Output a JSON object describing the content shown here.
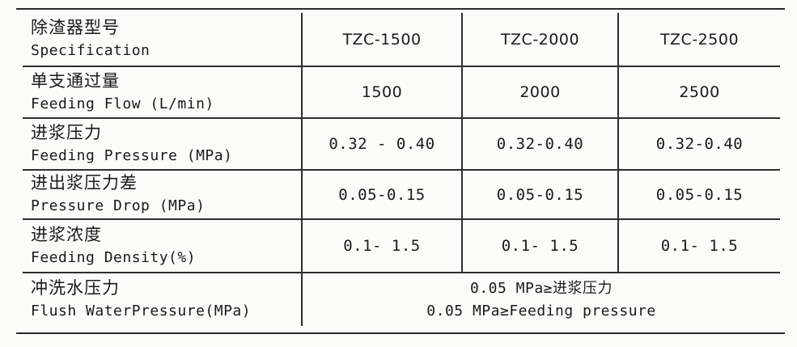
{
  "table": {
    "rows": [
      {
        "label_cn": "除渣器型号",
        "label_en": "Specification",
        "values": [
          "TZC-1500",
          "TZC-2000",
          "TZC-2500"
        ]
      },
      {
        "label_cn": "单支通过量",
        "label_en": "Feeding Flow (L/min)",
        "values": [
          "1500",
          "2000",
          "2500"
        ]
      },
      {
        "label_cn": "进浆压力",
        "label_en": "Feeding Pressure (MPa)",
        "values": [
          "0.32 - 0.40",
          "0.32-0.40",
          "0.32-0.40"
        ]
      },
      {
        "label_cn": "进出浆压力差",
        "label_en": "Pressure Drop (MPa)",
        "values": [
          "0.05-0.15",
          "0.05-0.15",
          "0.05-0.15"
        ]
      },
      {
        "label_cn": "进浆浓度",
        "label_en": "Feeding Density(%)",
        "values": [
          "0.1- 1.5",
          "0.1- 1.5",
          "0.1- 1.5"
        ]
      },
      {
        "label_cn": "冲洗水压力",
        "label_en": "Flush WaterPressure(MPa)",
        "merged_cn": "0.05 MPa≥进浆压力",
        "merged_en": "0.05 MPa≥Feeding pressure"
      }
    ]
  }
}
